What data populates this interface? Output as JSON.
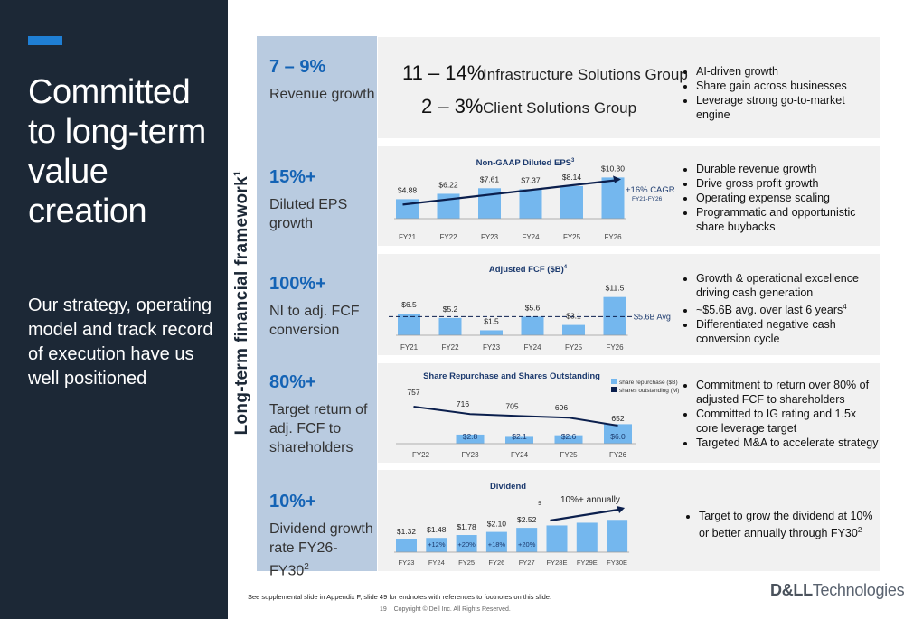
{
  "left": {
    "title": "Committed to long-term value creation",
    "subtitle": "Our strategy, operating model and track record of execution have us well positioned"
  },
  "vertical_label": {
    "text": "Long-term financial framework",
    "sup": "1"
  },
  "rows": [
    {
      "big": "7 – 9%",
      "small": "Revenue growth",
      "sup": ""
    },
    {
      "big": "15%+",
      "small": "Diluted EPS growth",
      "sup": ""
    },
    {
      "big": "100%+",
      "small": "NI to adj. FCF conversion",
      "sup": ""
    },
    {
      "big": "80%+",
      "small": "Target return of adj. FCF to shareholders",
      "sup": ""
    },
    {
      "big": "10%+",
      "small": "Dividend growth rate FY26-FY30",
      "sup": "2"
    }
  ],
  "revenue_panel": {
    "isg_pct": "11 – 14%",
    "isg_label": "Infrastructure Solutions Group",
    "csg_pct": "2 – 3%",
    "csg_label": "Client Solutions Group"
  },
  "bullets": {
    "revenue": [
      "AI-driven growth",
      "Share gain across businesses",
      "Leverage strong go-to-market engine"
    ],
    "eps": [
      "Durable revenue growth",
      "Drive gross profit growth",
      "Operating expense scaling",
      "Programmatic and opportunistic share buybacks"
    ],
    "fcf": [
      "Growth & operational excellence driving cash generation",
      "~$5.6B avg. over last 6 years",
      "Differentiated negative cash conversion cycle"
    ],
    "fcf_sup_index": 1,
    "fcf_sup": "4",
    "return": [
      "Commitment to return over 80% of adjusted FCF to shareholders",
      "Committed to IG rating and 1.5x core leverage target",
      "Targeted M&A to accelerate strategy"
    ],
    "dividend": [
      "Target to grow the dividend at 10% or better annually through FY30"
    ],
    "dividend_sup": "2"
  },
  "chart_data": [
    {
      "type": "bar",
      "title": "Non-GAAP Diluted EPS",
      "title_sup": "3",
      "categories": [
        "FY21",
        "FY22",
        "FY23",
        "FY24",
        "FY25",
        "FY26"
      ],
      "values": [
        4.88,
        6.22,
        7.61,
        7.37,
        8.14,
        10.3
      ],
      "labels": [
        "$4.88",
        "$6.22",
        "$7.61",
        "$7.37",
        "$8.14",
        "$10.30"
      ],
      "ylim": [
        0,
        14
      ],
      "annotation": "+16% CAGR",
      "annotation_sub": "FY21-FY26",
      "bar_color": "#74b7ee"
    },
    {
      "type": "bar",
      "title": "Adjusted FCF ($B)",
      "title_sup": "4",
      "categories": [
        "FY21",
        "FY22",
        "FY23",
        "FY24",
        "FY25",
        "FY26"
      ],
      "values": [
        6.5,
        5.2,
        1.5,
        5.6,
        3.1,
        11.5
      ],
      "labels": [
        "$6.5",
        "$5.2",
        "$1.5",
        "$5.6",
        "$3.1",
        "$11.5"
      ],
      "ylim": [
        0,
        12.5
      ],
      "avg_value": 5.6,
      "avg_label": "$5.6B Avg",
      "bar_color": "#74b7ee"
    },
    {
      "type": "bar",
      "title": "Share Repurchase and Shares Outstanding",
      "categories": [
        "FY22",
        "FY23",
        "FY24",
        "FY25",
        "FY26"
      ],
      "series": [
        {
          "name": "share repurchase ($B)",
          "values": [
            null,
            2.8,
            2.1,
            2.6,
            6.0
          ],
          "labels": [
            "",
            "$2.8",
            "$2.1",
            "$2.6",
            "$6.0"
          ],
          "color": "#74b7ee"
        },
        {
          "name": "shares outstanding (M)",
          "values": [
            757,
            716,
            705,
            696,
            652
          ],
          "labels": [
            "757",
            "716",
            "705",
            "696",
            "652"
          ],
          "color": "#0b1f4d"
        }
      ],
      "ylim_bars": [
        0,
        10
      ],
      "ylim_line": [
        580,
        800
      ]
    },
    {
      "type": "bar",
      "title": "Dividend",
      "categories": [
        "FY23",
        "FY24",
        "FY25",
        "FY26",
        "FY27",
        "FY28E",
        "FY29E",
        "FY30E"
      ],
      "values": [
        1.32,
        1.48,
        1.78,
        2.1,
        2.52,
        2.77,
        3.05,
        3.35
      ],
      "labels": [
        "$1.32",
        "$1.48",
        "$1.78",
        "$2.10",
        "$2.52",
        "",
        "",
        ""
      ],
      "growth_labels": [
        "",
        "+12%",
        "+20%",
        "+18%",
        "+20%",
        "",
        "",
        ""
      ],
      "value_sup": "5",
      "ylim": [
        0,
        4.5
      ],
      "annotation": "10%+ annually",
      "bar_color": "#74b7ee"
    }
  ],
  "footer": {
    "footnote": "See supplemental slide in Appendix F, slide 49 for endnotes with references to footnotes on this slide.",
    "page": "19",
    "copyright": "Copyright © Dell Inc. All Rights Reserved.",
    "logo_a": "D&LL",
    "logo_b": "Technologies"
  }
}
